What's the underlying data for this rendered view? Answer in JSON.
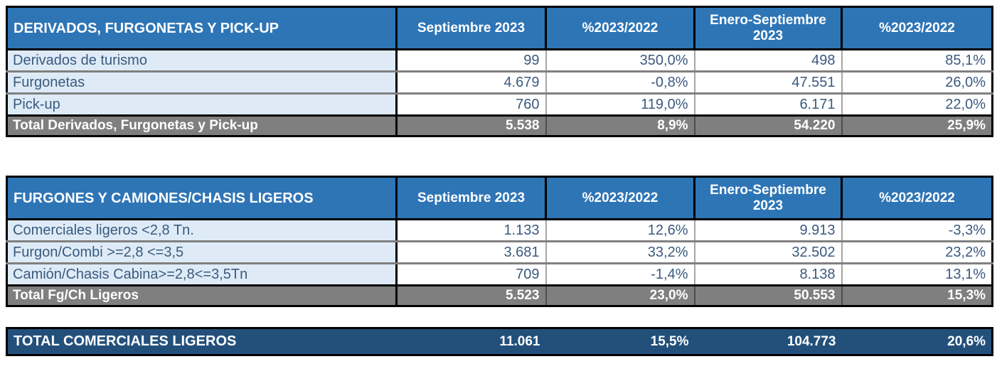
{
  "colors": {
    "header_bg": "#2E75B6",
    "header_text": "#FFFFFF",
    "label_bg": "#DEEBF7",
    "body_text": "#3A5A7E",
    "total_bg": "#7F7F7F",
    "total_text": "#FFFFFF",
    "grand_bg": "#23507B",
    "border_dark": "#000000",
    "row_line": "#808080",
    "col_line": "#A6A6A6"
  },
  "columns": [
    "Septiembre 2023",
    "%2023/2022",
    "Enero-Septiembre 2023",
    "%2023/2022"
  ],
  "tables": [
    {
      "title": "DERIVADOS, FURGONETAS Y PICK-UP",
      "rows": [
        {
          "label": "Derivados de turismo",
          "values": [
            "99",
            "350,0%",
            "498",
            "85,1%"
          ]
        },
        {
          "label": "Furgonetas",
          "values": [
            "4.679",
            "-0,8%",
            "47.551",
            "26,0%"
          ]
        },
        {
          "label": "Pick-up",
          "values": [
            "760",
            "119,0%",
            "6.171",
            "22,0%"
          ]
        }
      ],
      "total": {
        "label": "Total Derivados, Furgonetas y Pick-up",
        "values": [
          "5.538",
          "8,9%",
          "54.220",
          "25,9%"
        ]
      }
    },
    {
      "title": "FURGONES Y CAMIONES/CHASIS LIGEROS",
      "rows": [
        {
          "label": "Comerciales ligeros <2,8 Tn.",
          "values": [
            "1.133",
            "12,6%",
            "9.913",
            "-3,3%"
          ]
        },
        {
          "label": "Furgon/Combi >=2,8 <=3,5",
          "values": [
            "3.681",
            "33,2%",
            "32.502",
            "23,2%"
          ]
        },
        {
          "label": "Camión/Chasis Cabina>=2,8<=3,5Tn",
          "values": [
            "709",
            "-1,4%",
            "8.138",
            "13,1%"
          ]
        }
      ],
      "total": {
        "label": "Total Fg/Ch Ligeros",
        "values": [
          "5.523",
          "23,0%",
          "50.553",
          "15,3%"
        ]
      }
    }
  ],
  "grand_total": {
    "label": "TOTAL COMERCIALES LIGEROS",
    "values": [
      "11.061",
      "15,5%",
      "104.773",
      "20,6%"
    ]
  }
}
